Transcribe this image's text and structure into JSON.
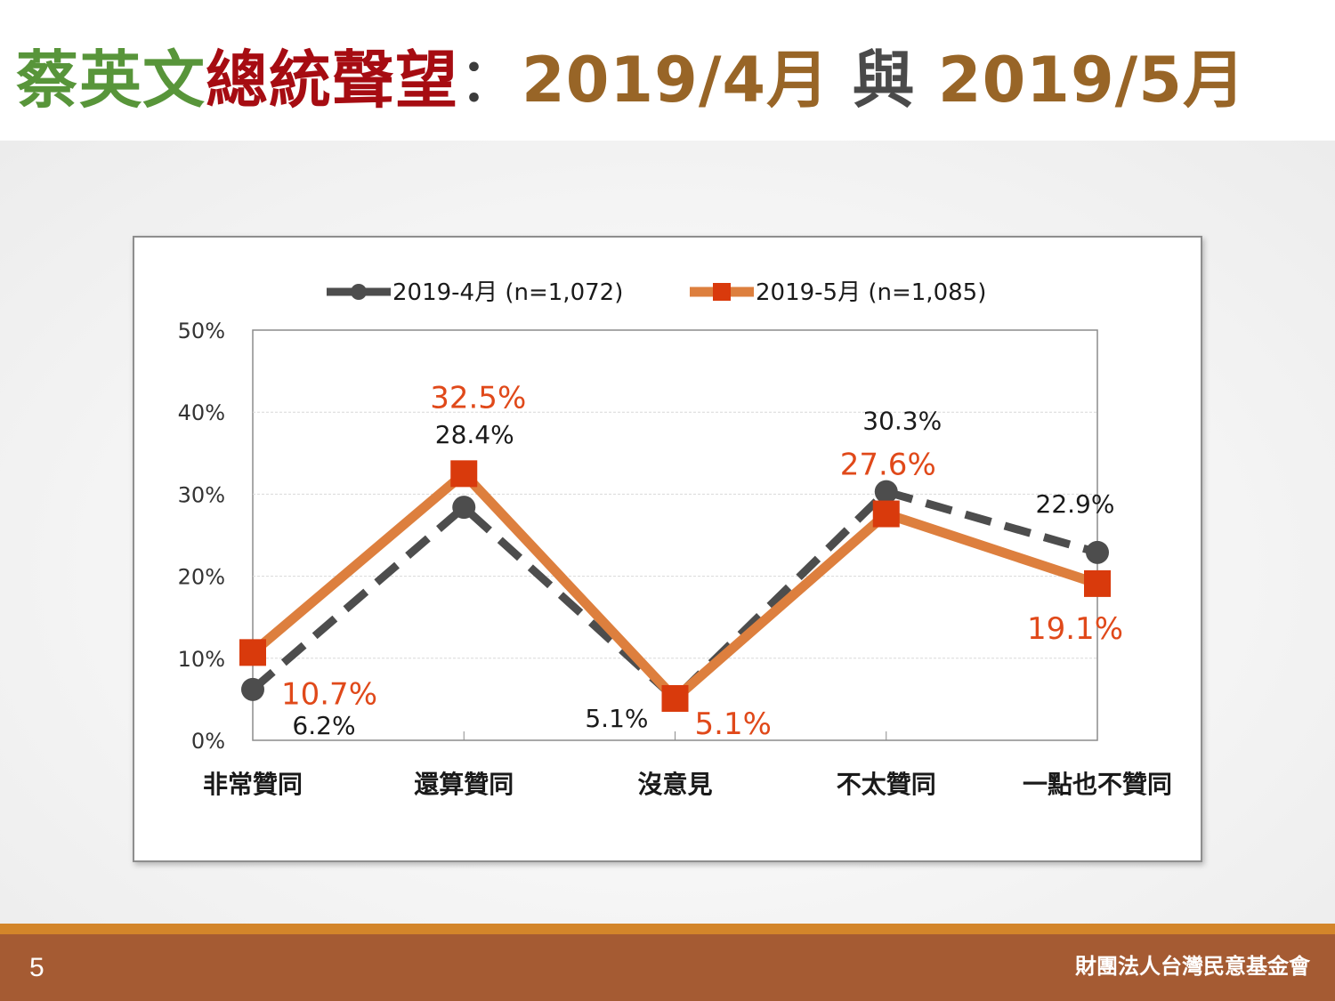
{
  "slide": {
    "title": {
      "name": "蔡英文",
      "topic": "總統聲望",
      "separator": "：",
      "period1": "2019/4月",
      "conjunction": "與",
      "period2": "2019/5月"
    },
    "page_number": "5",
    "organization": "財團法人台灣民意基金會"
  },
  "colors": {
    "series_apr": "#4d4d4d",
    "series_may": "#dd7f3e",
    "marker_may": "#d93a0c",
    "label_may": "#e0491a",
    "title_name": "#58953a",
    "title_topic": "#a60c12",
    "title_period": "#986527",
    "footer": "#a55b33"
  },
  "chart_data": {
    "type": "line",
    "categories": [
      "非常贊同",
      "還算贊同",
      "沒意見",
      "不太贊同",
      "一點也不贊同"
    ],
    "series": [
      {
        "name": "2019-4月  (n=1,072)",
        "style": "dashed",
        "marker": "circle",
        "values": [
          6.2,
          28.4,
          5.1,
          30.3,
          22.9
        ],
        "labels": [
          "6.2%",
          "28.4%",
          "5.1%",
          "30.3%",
          "22.9%"
        ]
      },
      {
        "name": "2019-5月  (n=1,085)",
        "style": "solid",
        "marker": "square",
        "values": [
          10.7,
          32.5,
          5.1,
          27.6,
          19.1
        ],
        "labels": [
          "10.7%",
          "32.5%",
          "5.1%",
          "27.6%",
          "19.1%"
        ]
      }
    ],
    "y_ticks": [
      "0%",
      "10%",
      "20%",
      "30%",
      "40%",
      "50%"
    ],
    "ylim": [
      0,
      50
    ],
    "grid": true,
    "legend": "top"
  }
}
